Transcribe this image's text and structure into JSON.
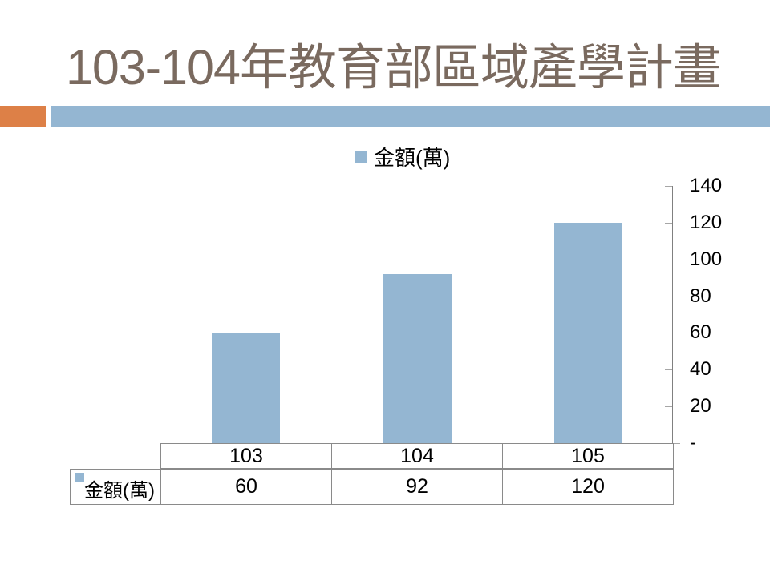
{
  "slide": {
    "title": "103-104年教育部區域產學計畫"
  },
  "theme": {
    "title_color": "#7A6A5F",
    "accent_orange": "#DD8047",
    "accent_blue": "#94B6D2",
    "axis_color": "#808080",
    "tick_color": "#A6A6A6",
    "table_border_color": "#8A8A8A",
    "text_color": "#000000"
  },
  "chart_data": {
    "type": "bar",
    "title": "",
    "categories": [
      "103",
      "104",
      "105"
    ],
    "series": [
      {
        "name": "金額(萬)",
        "values": [
          60,
          92,
          120
        ]
      }
    ],
    "legend": {
      "label": "金額(萬)",
      "position": "top-center",
      "marker_color": "#94B6D2"
    },
    "ylim": [
      0,
      140
    ],
    "ytick_interval": 20,
    "ytick_labels_top_to_bottom": [
      "140",
      "120",
      "100",
      "80",
      "60",
      "40",
      "20",
      "-"
    ],
    "y_axis_side": "right",
    "grid": false,
    "bar_color": "#94B6D2",
    "data_table_shown": true
  }
}
